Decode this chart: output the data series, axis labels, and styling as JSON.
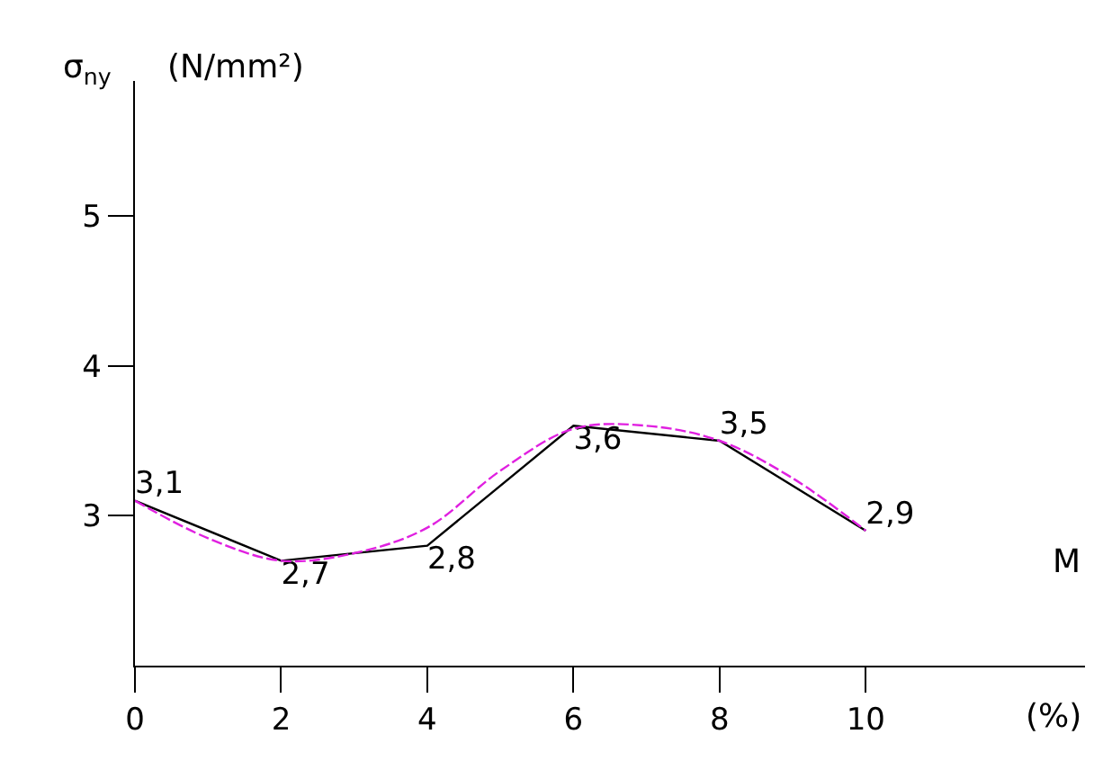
{
  "chart_data": {
    "type": "line",
    "xlabel": "M",
    "ylabel": "σ$_{ny}$",
    "annotations": [
      "(N/mm²)",
      "(%)"
    ],
    "x": [
      0,
      2,
      4,
      6,
      8,
      10
    ],
    "series": [
      {
        "color": "#000000",
        "values": [
          3.1,
          2.7,
          2.8,
          3.6,
          3.5,
          2.9
        ],
        "value_labels": [
          "3,1",
          "2,7",
          "2,8",
          "3,6",
          "3,5",
          "2,9"
        ],
        "line_style": "solid"
      },
      {
        "color": "#e020e0",
        "line_style": "dashed",
        "x": [
          0,
          1,
          2,
          3,
          4,
          5,
          6,
          7,
          8,
          9,
          10
        ],
        "values": [
          3.1,
          2.85,
          2.7,
          2.75,
          2.92,
          3.3,
          3.58,
          3.6,
          3.5,
          3.25,
          2.9
        ]
      }
    ],
    "xlim": [
      0,
      13
    ],
    "ylim": [
      2,
      5.9
    ],
    "xticks": [
      0,
      2,
      4,
      6,
      8,
      10
    ],
    "yticks": [
      3,
      4,
      5
    ],
    "legend": false
  }
}
